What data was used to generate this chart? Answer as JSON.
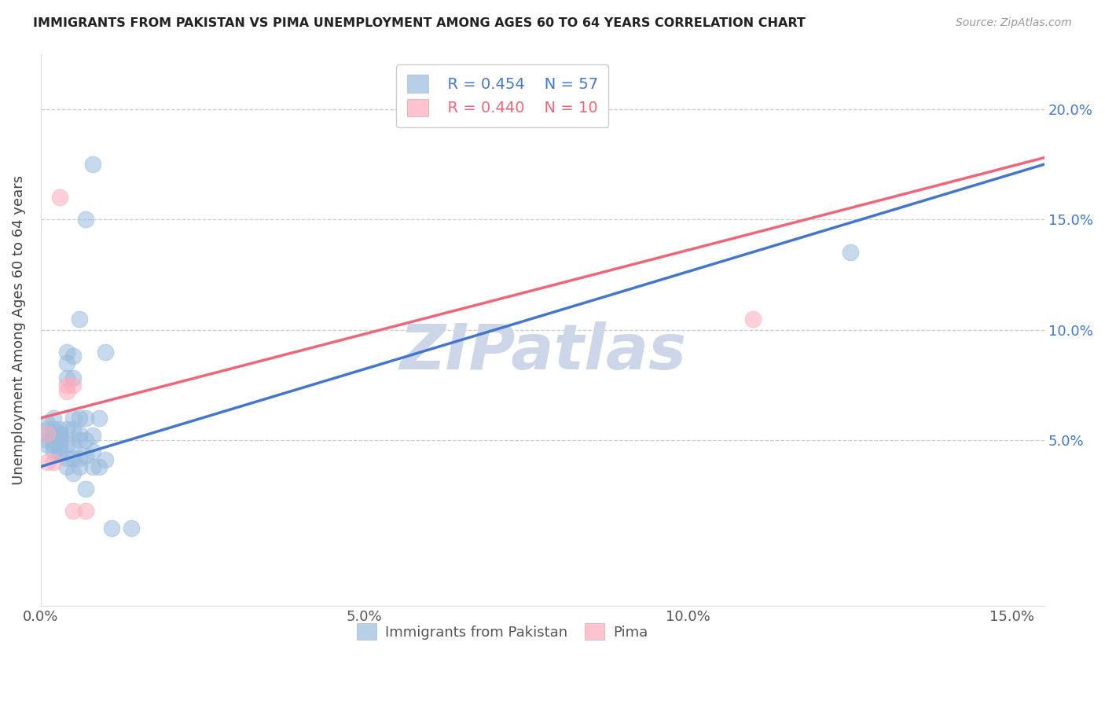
{
  "title": "IMMIGRANTS FROM PAKISTAN VS PIMA UNEMPLOYMENT AMONG AGES 60 TO 64 YEARS CORRELATION CHART",
  "source": "Source: ZipAtlas.com",
  "ylabel": "Unemployment Among Ages 60 to 64 years",
  "xlim": [
    0.0,
    0.155
  ],
  "ylim": [
    -0.025,
    0.225
  ],
  "grid_color": "#cccccc",
  "background_color": "#ffffff",
  "watermark_text": "ZIPatlas",
  "watermark_color": "#ccd6e8",
  "blue_color": "#99bbdd",
  "pink_color": "#ffaabb",
  "blue_line_color": "#4477cc",
  "pink_line_color": "#ee6677",
  "blue_scatter": [
    [
      0.001,
      0.053
    ],
    [
      0.001,
      0.058
    ],
    [
      0.001,
      0.05
    ],
    [
      0.001,
      0.055
    ],
    [
      0.001,
      0.048
    ],
    [
      0.002,
      0.052
    ],
    [
      0.002,
      0.06
    ],
    [
      0.002,
      0.055
    ],
    [
      0.002,
      0.05
    ],
    [
      0.002,
      0.045
    ],
    [
      0.002,
      0.052
    ],
    [
      0.002,
      0.048
    ],
    [
      0.003,
      0.053
    ],
    [
      0.003,
      0.05
    ],
    [
      0.003,
      0.045
    ],
    [
      0.003,
      0.055
    ],
    [
      0.003,
      0.053
    ],
    [
      0.003,
      0.052
    ],
    [
      0.003,
      0.048
    ],
    [
      0.003,
      0.044
    ],
    [
      0.004,
      0.09
    ],
    [
      0.004,
      0.085
    ],
    [
      0.004,
      0.078
    ],
    [
      0.004,
      0.055
    ],
    [
      0.004,
      0.048
    ],
    [
      0.004,
      0.042
    ],
    [
      0.004,
      0.038
    ],
    [
      0.005,
      0.088
    ],
    [
      0.005,
      0.078
    ],
    [
      0.005,
      0.06
    ],
    [
      0.005,
      0.055
    ],
    [
      0.005,
      0.048
    ],
    [
      0.005,
      0.042
    ],
    [
      0.005,
      0.035
    ],
    [
      0.006,
      0.105
    ],
    [
      0.006,
      0.06
    ],
    [
      0.006,
      0.053
    ],
    [
      0.006,
      0.05
    ],
    [
      0.006,
      0.042
    ],
    [
      0.006,
      0.038
    ],
    [
      0.007,
      0.15
    ],
    [
      0.007,
      0.06
    ],
    [
      0.007,
      0.05
    ],
    [
      0.007,
      0.043
    ],
    [
      0.007,
      0.028
    ],
    [
      0.008,
      0.175
    ],
    [
      0.008,
      0.052
    ],
    [
      0.008,
      0.045
    ],
    [
      0.008,
      0.038
    ],
    [
      0.009,
      0.06
    ],
    [
      0.009,
      0.038
    ],
    [
      0.01,
      0.09
    ],
    [
      0.01,
      0.041
    ],
    [
      0.011,
      0.01
    ],
    [
      0.014,
      0.01
    ],
    [
      0.125,
      0.135
    ]
  ],
  "pink_scatter": [
    [
      0.001,
      0.053
    ],
    [
      0.001,
      0.04
    ],
    [
      0.002,
      0.04
    ],
    [
      0.003,
      0.16
    ],
    [
      0.004,
      0.075
    ],
    [
      0.004,
      0.072
    ],
    [
      0.005,
      0.075
    ],
    [
      0.005,
      0.018
    ],
    [
      0.007,
      0.018
    ],
    [
      0.11,
      0.105
    ]
  ],
  "blue_line_x": [
    0.0,
    0.155
  ],
  "blue_line_y": [
    0.038,
    0.175
  ],
  "pink_line_x": [
    0.0,
    0.155
  ],
  "pink_line_y": [
    0.06,
    0.178
  ]
}
